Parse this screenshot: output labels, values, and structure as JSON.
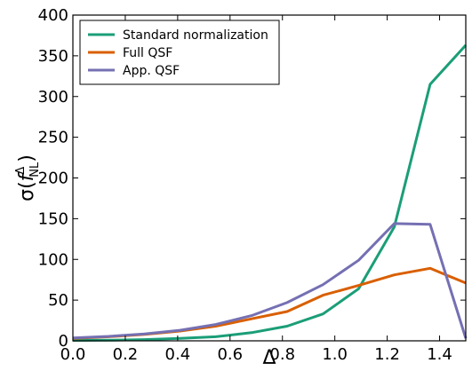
{
  "chart_data": {
    "type": "line",
    "title": "",
    "xlabel": "Δ",
    "ylabel_parts": {
      "sigma": "σ",
      "open": "(",
      "f": "f",
      "sup": "Δ",
      "sub": "NL",
      "close": ")"
    },
    "xlim": [
      0.0,
      1.5
    ],
    "ylim": [
      0,
      400
    ],
    "x_ticks": [
      "0.0",
      "0.2",
      "0.4",
      "0.6",
      "0.8",
      "1.0",
      "1.2",
      "1.4"
    ],
    "y_ticks": [
      "0",
      "50",
      "100",
      "150",
      "200",
      "250",
      "300",
      "350",
      "400"
    ],
    "grid": false,
    "legend_position": "top-left",
    "x": [
      0.0,
      0.136,
      0.273,
      0.409,
      0.545,
      0.682,
      0.818,
      0.955,
      1.091,
      1.227,
      1.364,
      1.5
    ],
    "series": [
      {
        "name": "Standard normalization",
        "color": "#1b9e77",
        "values": [
          0.5,
          0.8,
          1.5,
          3,
          5,
          10,
          18,
          33,
          64,
          140,
          315,
          363
        ]
      },
      {
        "name": "Full QSF",
        "color": "#d95f02",
        "values": [
          3,
          5,
          8,
          12,
          18,
          27,
          36,
          56,
          68,
          81,
          89,
          71
        ]
      },
      {
        "name": "App. QSF",
        "color": "#7570b3",
        "values": [
          3.5,
          5.5,
          8.5,
          13,
          20,
          31,
          47,
          69,
          99,
          144,
          143,
          3
        ]
      }
    ]
  }
}
